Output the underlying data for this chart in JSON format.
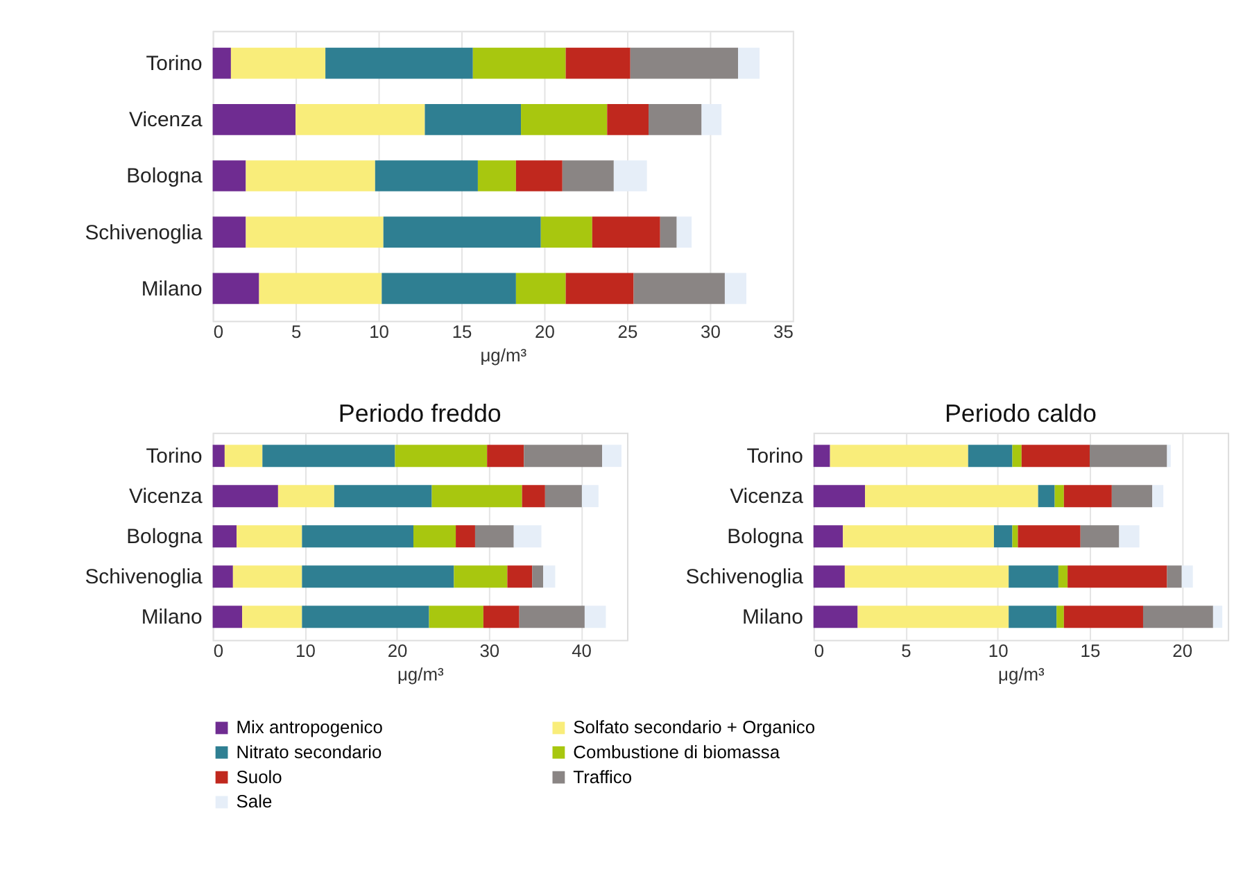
{
  "chart_data": [
    {
      "type": "bar",
      "orientation": "horizontal",
      "stacked": true,
      "xlabel": "μg/m³",
      "categories": [
        "Torino",
        "Vicenza",
        "Bologna",
        "Schivenoglia",
        "Milano"
      ],
      "xlim": [
        0,
        35
      ],
      "xticks": [
        0,
        5,
        10,
        15,
        20,
        25,
        30,
        35
      ],
      "grid": "x",
      "legend": "bottom",
      "series": [
        {
          "name": "Mix antropogenico",
          "color": "#6f2c91",
          "values": [
            1.1,
            5.0,
            2.0,
            2.0,
            2.8
          ]
        },
        {
          "name": "Solfato secondario + Organico",
          "color": "#f9ed7a",
          "values": [
            5.7,
            7.8,
            7.8,
            8.3,
            7.4
          ]
        },
        {
          "name": "Nitrato secondario",
          "color": "#2f7f92",
          "values": [
            8.9,
            5.8,
            6.2,
            9.5,
            8.1
          ]
        },
        {
          "name": "Combustione di biomassa",
          "color": "#a8c70f",
          "values": [
            5.6,
            5.2,
            2.3,
            3.1,
            3.0
          ]
        },
        {
          "name": "Suolo",
          "color": "#c0281e",
          "values": [
            3.9,
            2.5,
            2.8,
            4.1,
            4.1
          ]
        },
        {
          "name": "Traffico",
          "color": "#8a8584",
          "values": [
            6.5,
            3.2,
            3.1,
            1.0,
            5.5
          ]
        },
        {
          "name": "Sale",
          "color": "#e6eef8",
          "values": [
            1.3,
            1.2,
            2.0,
            0.9,
            1.3
          ]
        }
      ]
    },
    {
      "type": "bar",
      "orientation": "horizontal",
      "stacked": true,
      "title": "Periodo freddo",
      "xlabel": "μg/m³",
      "categories": [
        "Torino",
        "Vicenza",
        "Bologna",
        "Schivenoglia",
        "Milano"
      ],
      "xlim": [
        0,
        45
      ],
      "xticks": [
        0,
        10,
        20,
        30,
        40
      ],
      "grid": "x",
      "series": [
        {
          "color": "#6f2c91",
          "values": [
            1.3,
            7.1,
            2.6,
            2.2,
            3.2
          ]
        },
        {
          "color": "#f9ed7a",
          "values": [
            4.1,
            6.1,
            7.1,
            7.5,
            6.5
          ]
        },
        {
          "color": "#2f7f92",
          "values": [
            14.4,
            10.6,
            12.1,
            16.5,
            13.8
          ]
        },
        {
          "color": "#a8c70f",
          "values": [
            10.0,
            9.8,
            4.6,
            5.8,
            5.9
          ]
        },
        {
          "color": "#c0281e",
          "values": [
            4.0,
            2.5,
            2.1,
            2.7,
            3.9
          ]
        },
        {
          "color": "#8a8584",
          "values": [
            8.5,
            4.0,
            4.2,
            1.2,
            7.1
          ]
        },
        {
          "color": "#e6eef8",
          "values": [
            2.1,
            1.8,
            3.0,
            1.3,
            2.3
          ]
        }
      ]
    },
    {
      "type": "bar",
      "orientation": "horizontal",
      "stacked": true,
      "title": "Periodo caldo",
      "xlabel": "μg/m³",
      "categories": [
        "Torino",
        "Vicenza",
        "Bologna",
        "Schivenoglia",
        "Milano"
      ],
      "xlim": [
        0,
        22.5
      ],
      "xticks": [
        0,
        5,
        10,
        15,
        20
      ],
      "grid": "x",
      "series": [
        {
          "color": "#6f2c91",
          "values": [
            0.9,
            2.8,
            1.6,
            1.7,
            2.4
          ]
        },
        {
          "color": "#f9ed7a",
          "values": [
            7.5,
            9.4,
            8.2,
            8.9,
            8.2
          ]
        },
        {
          "color": "#2f7f92",
          "values": [
            2.4,
            0.9,
            1.0,
            2.7,
            2.6
          ]
        },
        {
          "color": "#a8c70f",
          "values": [
            0.5,
            0.5,
            0.3,
            0.5,
            0.4
          ]
        },
        {
          "color": "#c0281e",
          "values": [
            3.7,
            2.6,
            3.4,
            5.4,
            4.3
          ]
        },
        {
          "color": "#8a8584",
          "values": [
            4.2,
            2.2,
            2.1,
            0.8,
            3.8
          ]
        },
        {
          "color": "#e6eef8",
          "values": [
            0.2,
            0.6,
            1.1,
            0.6,
            0.5
          ]
        }
      ]
    }
  ]
}
